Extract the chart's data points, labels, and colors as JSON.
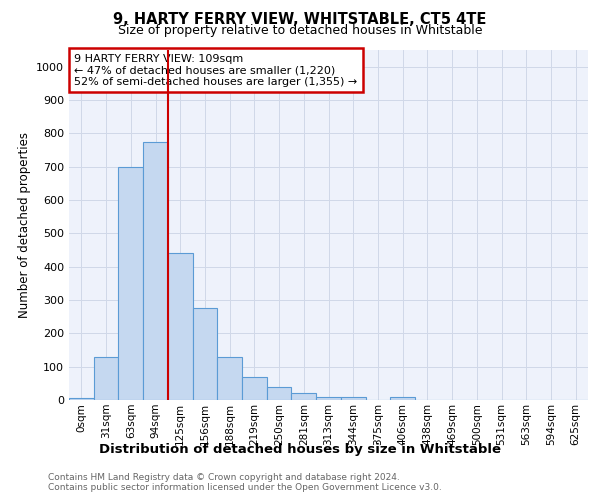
{
  "title": "9, HARTY FERRY VIEW, WHITSTABLE, CT5 4TE",
  "subtitle": "Size of property relative to detached houses in Whitstable",
  "xlabel": "Distribution of detached houses by size in Whitstable",
  "ylabel": "Number of detached properties",
  "categories": [
    "0sqm",
    "31sqm",
    "63sqm",
    "94sqm",
    "125sqm",
    "156sqm",
    "188sqm",
    "219sqm",
    "250sqm",
    "281sqm",
    "313sqm",
    "344sqm",
    "375sqm",
    "406sqm",
    "438sqm",
    "469sqm",
    "500sqm",
    "531sqm",
    "563sqm",
    "594sqm",
    "625sqm"
  ],
  "values": [
    5,
    128,
    700,
    775,
    440,
    275,
    130,
    70,
    38,
    20,
    10,
    10,
    0,
    10,
    0,
    0,
    0,
    0,
    0,
    0,
    0
  ],
  "bar_color": "#c5d8f0",
  "bar_edge_color": "#5b9bd5",
  "red_line_x": 3.5,
  "annotation_text": "9 HARTY FERRY VIEW: 109sqm\n← 47% of detached houses are smaller (1,220)\n52% of semi-detached houses are larger (1,355) →",
  "annotation_box_facecolor": "#ffffff",
  "annotation_box_edgecolor": "#cc0000",
  "ylim": [
    0,
    1050
  ],
  "yticks": [
    0,
    100,
    200,
    300,
    400,
    500,
    600,
    700,
    800,
    900,
    1000
  ],
  "grid_color": "#d0d8e8",
  "footer_line1": "Contains HM Land Registry data © Crown copyright and database right 2024.",
  "footer_line2": "Contains public sector information licensed under the Open Government Licence v3.0.",
  "plot_bg_color": "#eef2fb"
}
